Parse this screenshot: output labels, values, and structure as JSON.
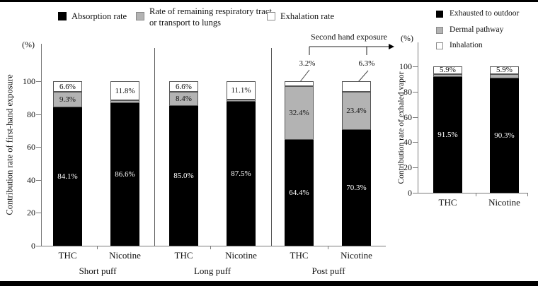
{
  "colors": {
    "black": "#000000",
    "gray": "#b3b3b3",
    "white": "#ffffff",
    "border": "#555555"
  },
  "legend_main": {
    "items": [
      {
        "label": "Absorption rate",
        "swatch": "black"
      },
      {
        "label": "Rate of remaining respiratory tract or transport to lungs",
        "swatch": "gray"
      },
      {
        "label": "Exhalation rate",
        "swatch": "white"
      }
    ]
  },
  "legend_right": {
    "items": [
      {
        "label": "Exhausted to outdoor",
        "swatch": "black"
      },
      {
        "label": "Dermal pathway",
        "swatch": "gray"
      },
      {
        "label": "Inhalation",
        "swatch": "white"
      }
    ]
  },
  "annotations": {
    "second_hand_exposure": "Second hand exposure"
  },
  "chart_data": [
    {
      "type": "bar",
      "stacked": true,
      "ylabel": "Contribution rate of first-hand exposure",
      "unit": "(%)",
      "ylim": [
        0,
        100
      ],
      "yticks": [
        0,
        20,
        40,
        60,
        80,
        100
      ],
      "legend_position": "top",
      "series_names": [
        "Absorption rate",
        "Rate of remaining respiratory tract or transport to lungs",
        "Exhalation rate"
      ],
      "series_colors": [
        "#000000",
        "#b3b3b3",
        "#ffffff"
      ],
      "group_labels": [
        "Short puff",
        "Long puff",
        "Post puff"
      ],
      "bars": [
        {
          "group": "Short puff",
          "category": "THC",
          "values": [
            84.1,
            9.3,
            6.6
          ],
          "labels": [
            "84.1%",
            "9.3%",
            "6.6%"
          ],
          "label_pos": [
            "in",
            "in",
            "in"
          ]
        },
        {
          "group": "Short puff",
          "category": "Nicotine",
          "values": [
            86.6,
            1.6,
            11.8
          ],
          "labels": [
            "86.6%",
            "",
            "11.8%"
          ],
          "label_pos": [
            "in",
            "none",
            "in"
          ]
        },
        {
          "group": "Long puff",
          "category": "THC",
          "values": [
            85.0,
            8.4,
            6.6
          ],
          "labels": [
            "85.0%",
            "8.4%",
            "6.6%"
          ],
          "label_pos": [
            "in",
            "in",
            "in"
          ]
        },
        {
          "group": "Long puff",
          "category": "Nicotine",
          "values": [
            87.5,
            1.4,
            11.1
          ],
          "labels": [
            "87.5%",
            "",
            "11.1%"
          ],
          "label_pos": [
            "in",
            "none",
            "in"
          ]
        },
        {
          "group": "Post puff",
          "category": "THC",
          "values": [
            64.4,
            32.4,
            3.2
          ],
          "labels": [
            "64.4%",
            "32.4%",
            "3.2%"
          ],
          "label_pos": [
            "in",
            "in",
            "callout"
          ]
        },
        {
          "group": "Post puff",
          "category": "Nicotine",
          "values": [
            70.3,
            23.4,
            6.3
          ],
          "labels": [
            "70.3%",
            "23.4%",
            "6.3%"
          ],
          "label_pos": [
            "in",
            "in",
            "callout"
          ]
        }
      ]
    },
    {
      "type": "bar",
      "stacked": true,
      "ylabel": "Contribution rate of exhaled vapor",
      "unit": "(%)",
      "ylim": [
        0,
        100
      ],
      "yticks": [
        0,
        20,
        40,
        60,
        80,
        100
      ],
      "legend_position": "top",
      "series_names": [
        "Exhausted to outdoor",
        "Dermal pathway",
        "Inhalation"
      ],
      "series_colors": [
        "#000000",
        "#b3b3b3",
        "#ffffff"
      ],
      "bars": [
        {
          "category": "THC",
          "values": [
            91.5,
            2.6,
            5.9
          ],
          "labels": [
            "91.5%",
            "",
            "5.9%"
          ],
          "label_pos": [
            "in",
            "none",
            "in"
          ]
        },
        {
          "category": "Nicotine",
          "values": [
            90.3,
            3.8,
            5.9
          ],
          "labels": [
            "90.3%",
            "",
            "5.9%"
          ],
          "label_pos": [
            "in",
            "none",
            "in"
          ]
        }
      ]
    }
  ]
}
